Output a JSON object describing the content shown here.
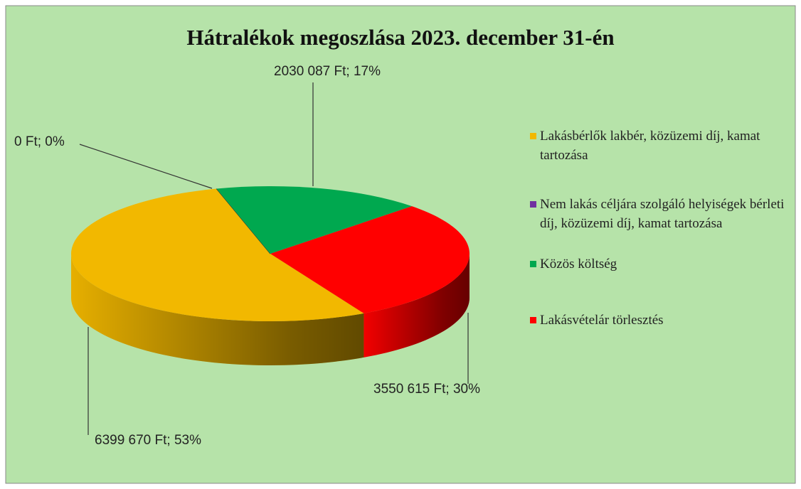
{
  "chart_data": {
    "type": "pie",
    "title": "Hátralékok megoszlása 2023. december 31-én",
    "categories": [
      "Lakásbérlők lakbér, közüzemi díj, kamat tartozása",
      "Nem lakás céljára szolgáló helyiségek bérleti díj, közüzemi díj, kamat tartozása",
      "Közös költség",
      "Lakásvételár törlesztés"
    ],
    "values": [
      6399670,
      0,
      2030087,
      3550615
    ],
    "value_labels": [
      "6399 670 Ft; 53%",
      "0 Ft; 0%",
      "2030 087 Ft; 17%",
      "3550 615 Ft; 30%"
    ],
    "colors": [
      "#f2b800",
      "#7030a0",
      "#00a84f",
      "#ff0000"
    ],
    "legend": "right"
  }
}
